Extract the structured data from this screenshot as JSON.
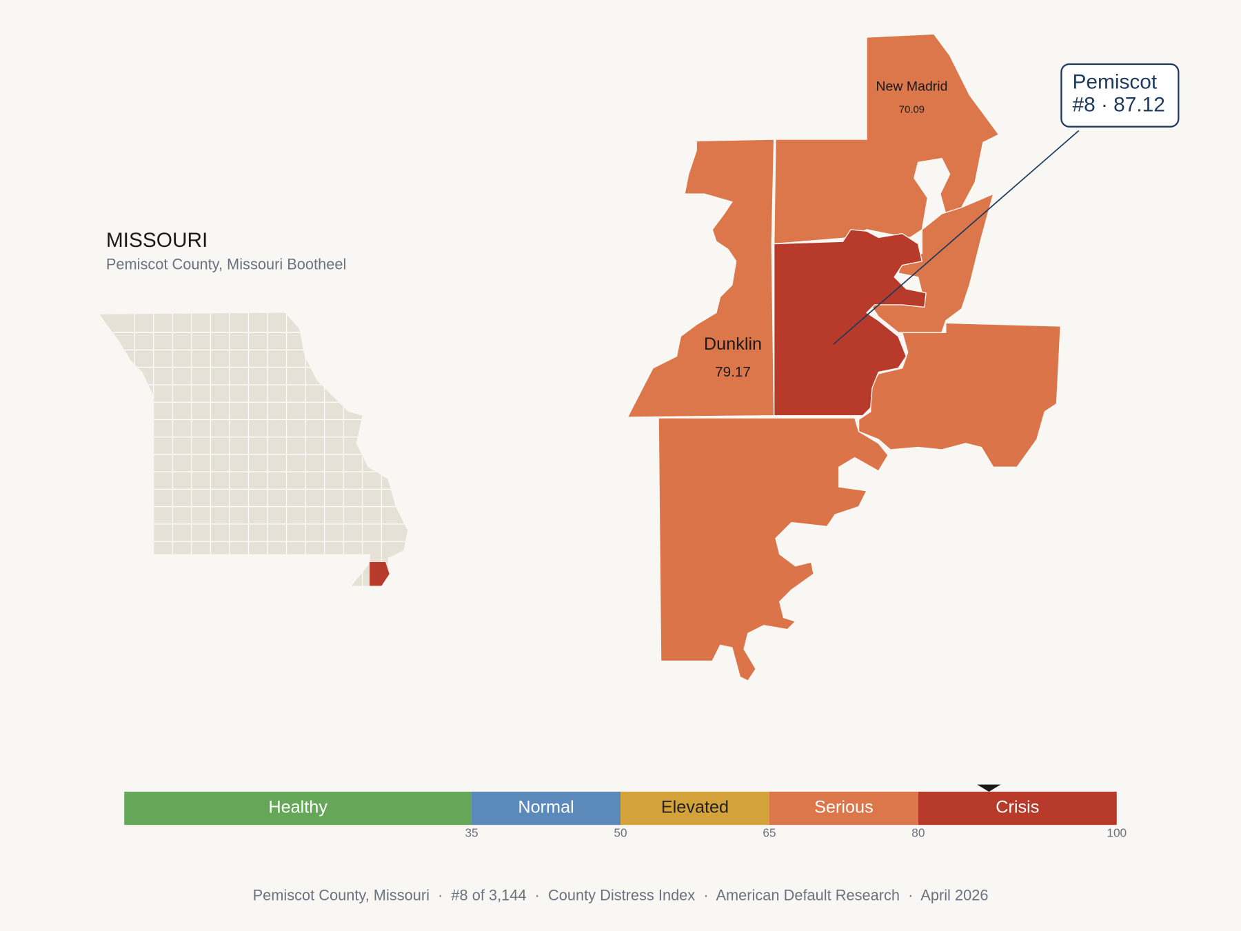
{
  "header": {
    "title": "MISSOURI",
    "subtitle": "Pemiscot County, Missouri Bootheel"
  },
  "counties": [
    {
      "name": "New Madrid",
      "value": 70.09
    },
    {
      "name": "Dunklin",
      "value": 79.17
    },
    {
      "name": "Pemiscot",
      "value": 87.12,
      "selected": true
    }
  ],
  "callout": {
    "label": "#8 · 87.12"
  },
  "scale": {
    "lim": [
      0,
      100
    ],
    "ticks": [
      35,
      50,
      65,
      80,
      100
    ],
    "bands": [
      {
        "label": "Healthy",
        "color": "#66a659",
        "text_color": "#ffffff"
      },
      {
        "label": "Normal",
        "color": "#5b8aba",
        "text_color": "#ffffff"
      },
      {
        "label": "Elevated",
        "color": "#d4a23a",
        "text_color": "#222222"
      },
      {
        "label": "Serious",
        "color": "#db774a",
        "text_color": "#ffffff"
      },
      {
        "label": "Crisis",
        "color": "#b83a2b",
        "text_color": "#ffffff"
      }
    ]
  },
  "footer": "Pemiscot County, Missouri  ·  #8 of 3,144  ·  County Distress Index  ·  American Default Research  ·  April 2026"
}
